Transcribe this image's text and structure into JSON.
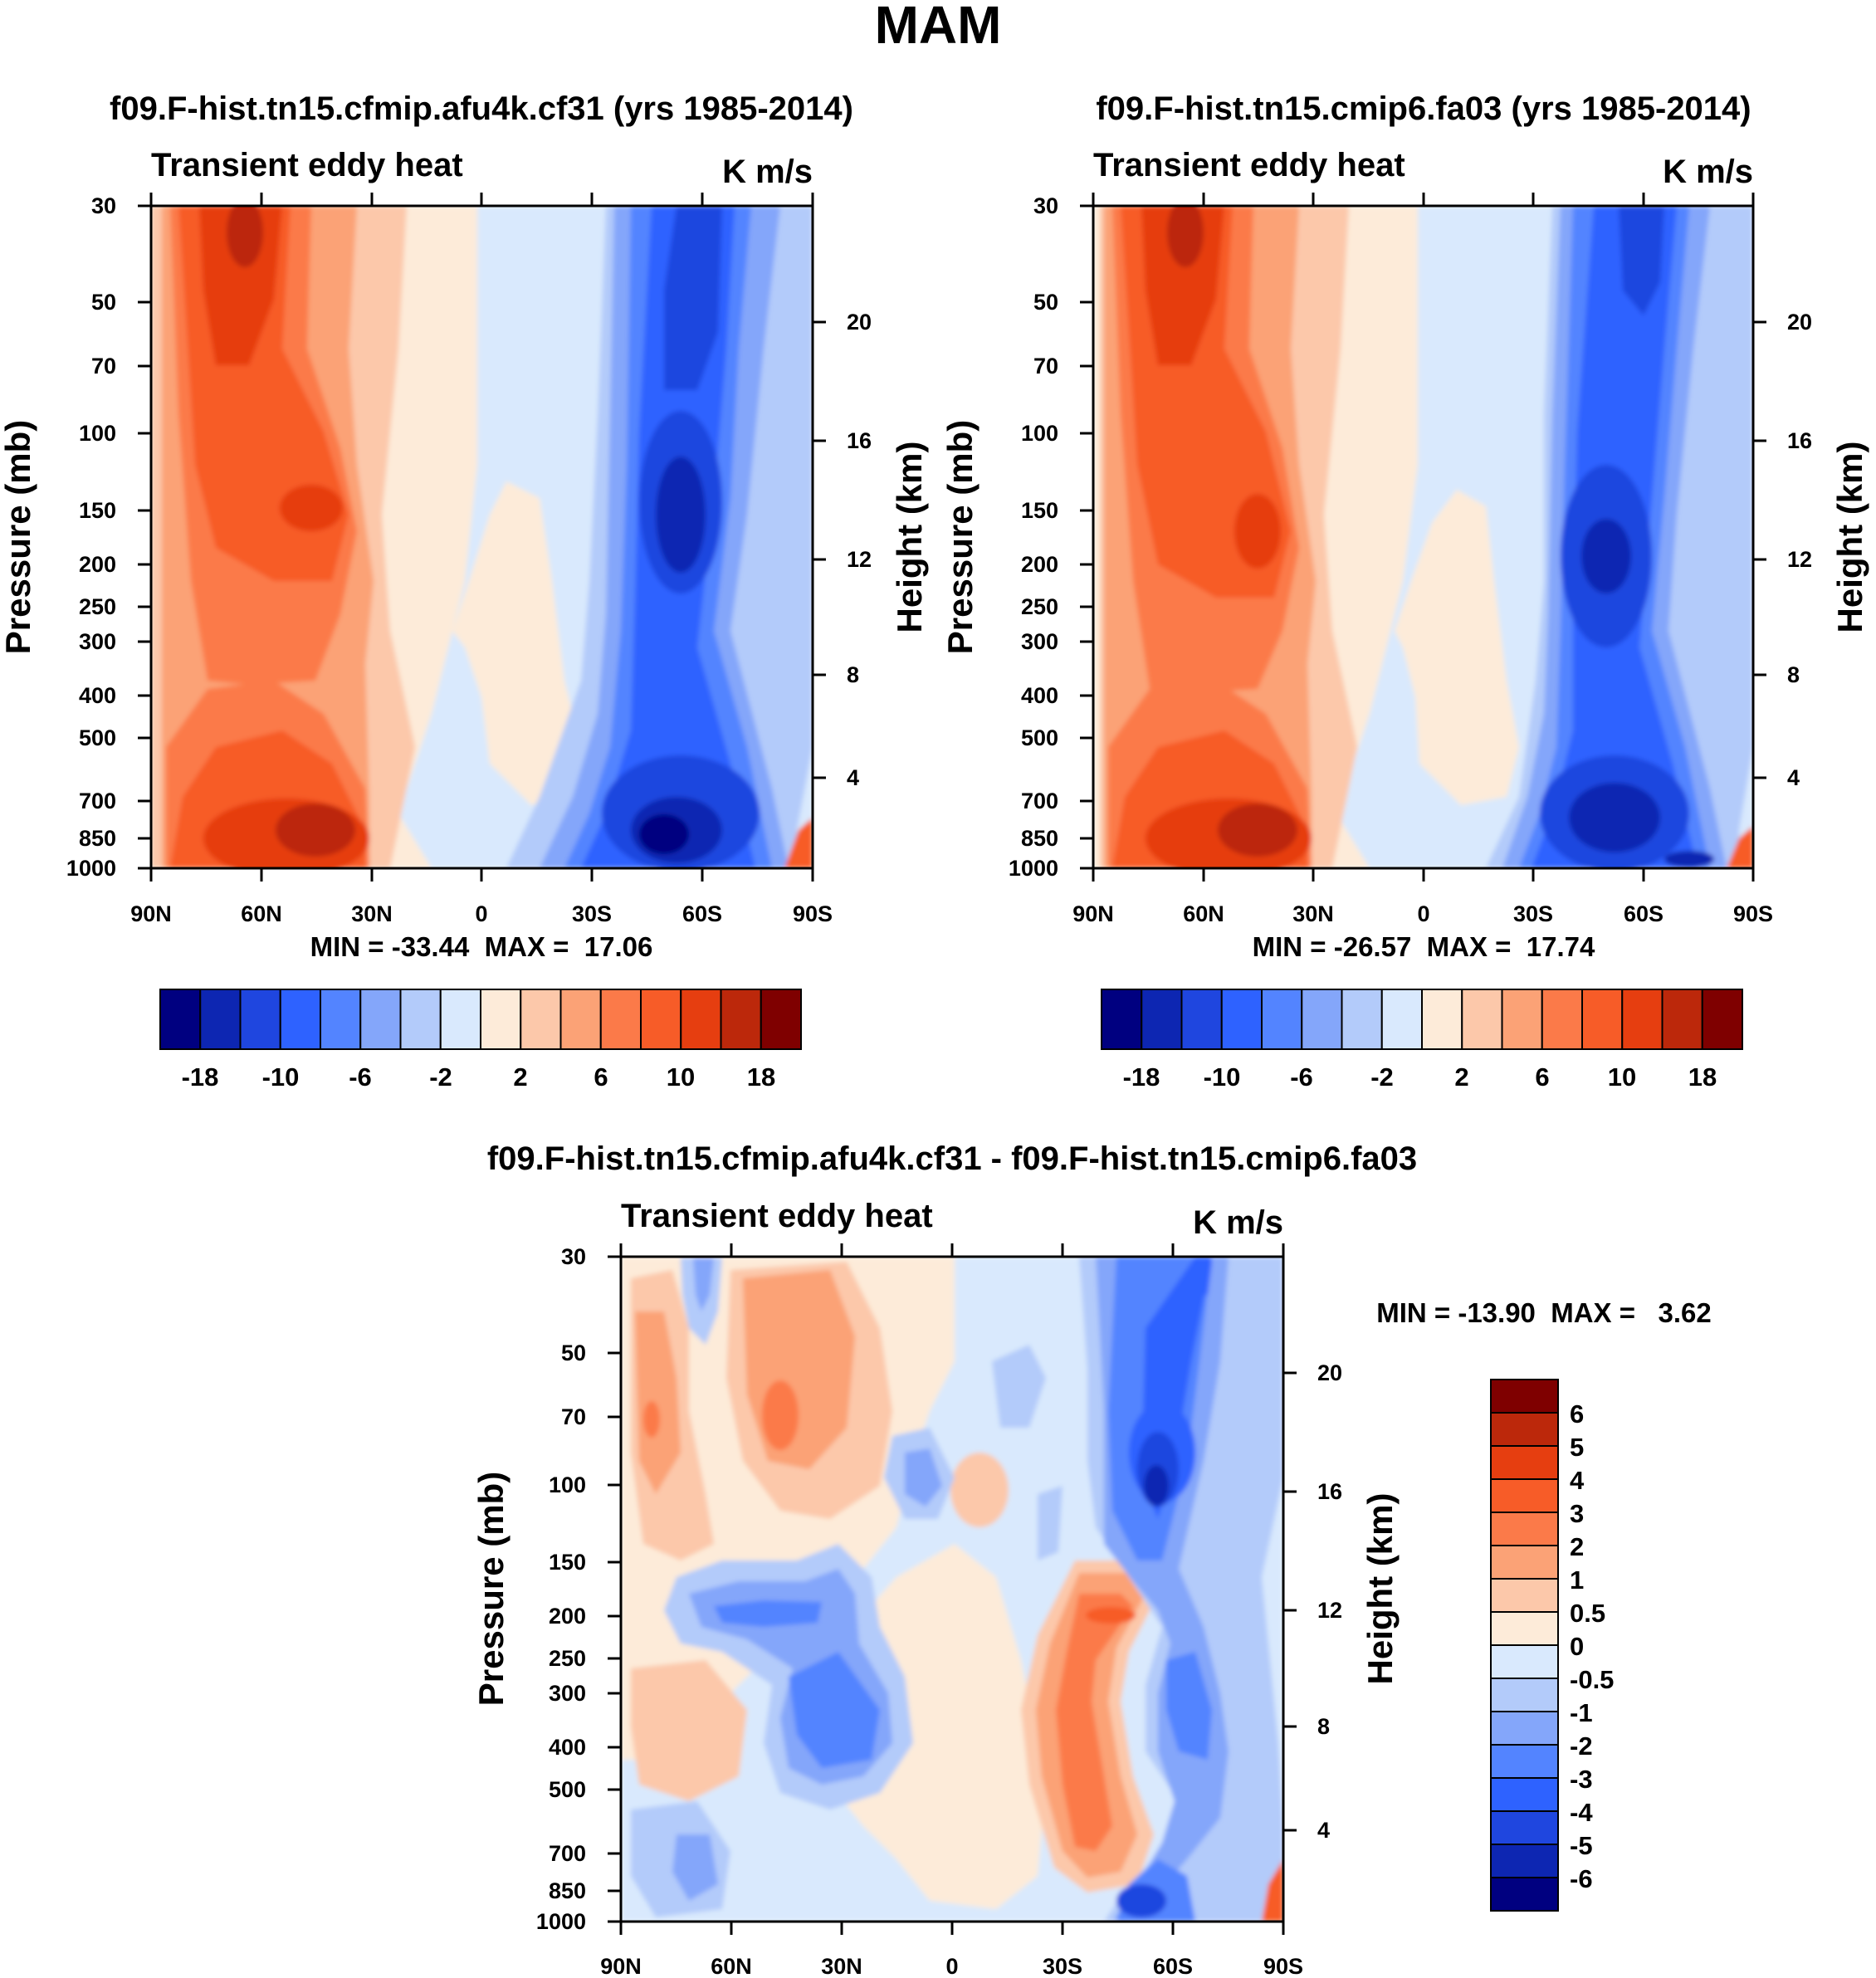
{
  "title": "MAM",
  "colors": {
    "blue": [
      "#000080",
      "#0d26b2",
      "#1f46df",
      "#2e62ff",
      "#5384ff",
      "#84a6fa",
      "#b3cbfa",
      "#d9e9fd"
    ],
    "red": [
      "#fdebd9",
      "#fcc8aa",
      "#fba276",
      "#fb7a49",
      "#f75c28",
      "#e63e10",
      "#bc280b",
      "#7f0000"
    ]
  },
  "chart_data": [
    {
      "type": "contour",
      "title": "f09.F-hist.tn15.cfmip.afu4k.cf31 (yrs 1985-2014)",
      "subtitle": "Transient eddy heat",
      "units": "K m/s",
      "xlabel": "",
      "ylabel": "Pressure (mb)",
      "ylabel_right": "Height (km)",
      "x_ticks": [
        "90N",
        "60N",
        "30N",
        "0",
        "30S",
        "60S",
        "90S"
      ],
      "x_range": [
        90,
        -90
      ],
      "y_ticks": [
        30,
        50,
        70,
        100,
        150,
        200,
        250,
        300,
        400,
        500,
        700,
        850,
        1000
      ],
      "y_range": [
        30,
        1000
      ],
      "y_right_ticks": [
        4,
        8,
        12,
        16,
        20
      ],
      "stats": "MIN = -33.44  MAX =  17.06",
      "min": -33.44,
      "max": 17.06,
      "levels": [
        -18,
        -14,
        -10,
        -8,
        -6,
        -4,
        -2,
        0,
        2,
        4,
        6,
        8,
        10,
        14,
        18
      ],
      "colorbar_labels": [
        "-18",
        "-10",
        "-6",
        "-2",
        "2",
        "6",
        "10",
        "18"
      ],
      "features": [
        {
          "type": "max",
          "lat": 62,
          "p": 35,
          "value": 16
        },
        {
          "type": "max",
          "lat": 45,
          "p": 150,
          "value": 15
        },
        {
          "type": "max",
          "lat": 48,
          "p": 850,
          "value": 17
        },
        {
          "type": "min",
          "lat": -55,
          "p": 150,
          "value": -28
        },
        {
          "type": "min",
          "lat": -57,
          "p": 850,
          "value": -33
        }
      ]
    },
    {
      "type": "contour",
      "title": "f09.F-hist.tn15.cmip6.fa03 (yrs 1985-2014)",
      "subtitle": "Transient eddy heat",
      "units": "K m/s",
      "xlabel": "",
      "ylabel": "Pressure (mb)",
      "ylabel_right": "Height (km)",
      "x_ticks": [
        "90N",
        "60N",
        "30N",
        "0",
        "30S",
        "60S",
        "90S"
      ],
      "x_range": [
        90,
        -90
      ],
      "y_ticks": [
        30,
        50,
        70,
        100,
        150,
        200,
        250,
        300,
        400,
        500,
        700,
        850,
        1000
      ],
      "y_range": [
        30,
        1000
      ],
      "y_right_ticks": [
        4,
        8,
        12,
        16,
        20
      ],
      "stats": "MIN = -26.57  MAX =  17.74",
      "min": -26.57,
      "max": 17.74,
      "levels": [
        -18,
        -14,
        -10,
        -8,
        -6,
        -4,
        -2,
        0,
        2,
        4,
        6,
        8,
        10,
        14,
        18
      ],
      "colorbar_labels": [
        "-18",
        "-10",
        "-6",
        "-2",
        "2",
        "6",
        "10",
        "18"
      ],
      "features": [
        {
          "type": "max",
          "lat": 62,
          "p": 35,
          "value": 17
        },
        {
          "type": "max",
          "lat": 40,
          "p": 170,
          "value": 15
        },
        {
          "type": "max",
          "lat": 48,
          "p": 850,
          "value": 17
        },
        {
          "type": "min",
          "lat": -50,
          "p": 200,
          "value": -24
        },
        {
          "type": "min",
          "lat": -52,
          "p": 850,
          "value": -26
        }
      ]
    },
    {
      "type": "contour",
      "title": "f09.F-hist.tn15.cfmip.afu4k.cf31 - f09.F-hist.tn15.cmip6.fa03",
      "subtitle": "Transient eddy heat",
      "units": "K m/s",
      "xlabel": "",
      "ylabel": "Pressure (mb)",
      "ylabel_right": "Height (km)",
      "x_ticks": [
        "90N",
        "60N",
        "30N",
        "0",
        "30S",
        "60S",
        "90S"
      ],
      "x_range": [
        90,
        -90
      ],
      "y_ticks": [
        30,
        50,
        70,
        100,
        150,
        200,
        250,
        300,
        400,
        500,
        700,
        850,
        1000
      ],
      "y_range": [
        30,
        1000
      ],
      "y_right_ticks": [
        4,
        8,
        12,
        16,
        20
      ],
      "stats": "MIN = -13.90  MAX =   3.62",
      "min": -13.9,
      "max": 3.62,
      "levels": [
        -6,
        -5,
        -4,
        -3,
        -2,
        -1,
        -0.5,
        0,
        0.5,
        1,
        2,
        3,
        4,
        5,
        6
      ],
      "colorbar_labels": [
        "6",
        "5",
        "4",
        "3",
        "2",
        "1",
        "0.5",
        "0",
        "-0.5",
        "-1",
        "-2",
        "-3",
        "-4",
        "-5",
        "-6"
      ],
      "features": [
        {
          "type": "max",
          "lat": 45,
          "p": 70,
          "value": 2.5
        },
        {
          "type": "max",
          "lat": -40,
          "p": 200,
          "value": 3.6
        },
        {
          "type": "min",
          "lat": -57,
          "p": 150,
          "value": -4.5
        },
        {
          "type": "min",
          "lat": 50,
          "p": 200,
          "value": -2.5
        },
        {
          "type": "min",
          "lat": -52,
          "p": 950,
          "value": -6
        }
      ]
    }
  ]
}
